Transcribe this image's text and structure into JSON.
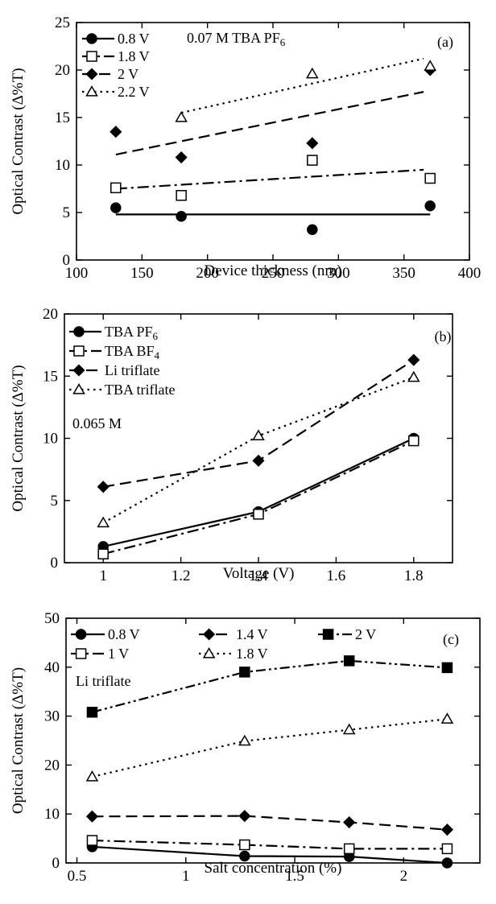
{
  "chart_data": [
    {
      "type": "scatter",
      "panel_label": "(a)",
      "annotation": "0.07 M TBA PF",
      "annotation_sub": "6",
      "xlabel": "Device thickness (nm)",
      "ylabel": "Optical Contrast (Δ%T)",
      "xlim": [
        100,
        400
      ],
      "ylim": [
        0,
        25
      ],
      "xticks": [
        100,
        150,
        200,
        250,
        300,
        350,
        400
      ],
      "yticks": [
        0,
        5,
        10,
        15,
        20,
        25
      ],
      "legend_position": "top-left",
      "series": [
        {
          "name": "0.8 V",
          "marker": "circle-filled",
          "line": "solid",
          "points": [
            [
              130,
              5.5
            ],
            [
              180,
              4.6
            ],
            [
              280,
              3.2
            ],
            [
              370,
              5.7
            ]
          ],
          "fit": [
            [
              130,
              4.8
            ],
            [
              370,
              4.8
            ]
          ]
        },
        {
          "name": "1.8 V",
          "marker": "square-open",
          "line": "dashdot",
          "points": [
            [
              130,
              7.6
            ],
            [
              180,
              6.8
            ],
            [
              280,
              10.5
            ],
            [
              370,
              8.6
            ]
          ],
          "fit": [
            [
              130,
              7.5
            ],
            [
              365,
              9.5
            ]
          ]
        },
        {
          "name": "2 V",
          "marker": "diamond-filled",
          "line": "dashed",
          "points": [
            [
              130,
              13.5
            ],
            [
              180,
              10.8
            ],
            [
              280,
              12.3
            ],
            [
              370,
              20.0
            ]
          ],
          "fit": [
            [
              130,
              11.1
            ],
            [
              365,
              17.7
            ]
          ]
        },
        {
          "name": "2.2 V",
          "marker": "triangle-open",
          "line": "dotted",
          "points": [
            [
              180,
              15.0
            ],
            [
              280,
              19.6
            ],
            [
              370,
              20.4
            ]
          ],
          "fit": [
            [
              180,
              15.5
            ],
            [
              365,
              21.2
            ]
          ]
        }
      ]
    },
    {
      "type": "line",
      "panel_label": "(b)",
      "annotation": "0.065 M",
      "xlabel": "Voltage (V)",
      "ylabel": "Optical Contrast (Δ%T)",
      "xlim": [
        0.9,
        1.9
      ],
      "ylim": [
        0,
        20
      ],
      "xticks": [
        1,
        1.2,
        1.4,
        1.6,
        1.8
      ],
      "yticks": [
        0,
        5,
        10,
        15,
        20
      ],
      "legend_position": "top-left",
      "series": [
        {
          "name": "TBA PF6",
          "label_main": "TBA PF",
          "label_sub": "6",
          "marker": "circle-filled",
          "line": "solid",
          "points": [
            [
              1,
              1.3
            ],
            [
              1.4,
              4.1
            ],
            [
              1.8,
              10.0
            ]
          ]
        },
        {
          "name": "TBA BF4",
          "label_main": "TBA BF",
          "label_sub": "4",
          "marker": "square-open",
          "line": "dashdot",
          "points": [
            [
              1,
              0.7
            ],
            [
              1.4,
              3.9
            ],
            [
              1.8,
              9.8
            ]
          ]
        },
        {
          "name": "Li triflate",
          "marker": "diamond-filled",
          "line": "dashed",
          "points": [
            [
              1,
              6.1
            ],
            [
              1.4,
              8.2
            ],
            [
              1.8,
              16.3
            ]
          ]
        },
        {
          "name": "TBA triflate",
          "marker": "triangle-open",
          "line": "dotted",
          "points": [
            [
              1,
              3.2
            ],
            [
              1.4,
              10.2
            ],
            [
              1.8,
              14.9
            ]
          ]
        }
      ]
    },
    {
      "type": "line",
      "panel_label": "(c)",
      "annotation": "Li triflate",
      "xlabel": "Salt concentration (%)",
      "ylabel": "Optical Contrast (Δ%T)",
      "xlim": [
        0.45,
        2.35
      ],
      "ylim": [
        0,
        50
      ],
      "xticks": [
        0.5,
        1,
        1.5,
        2
      ],
      "yticks": [
        0,
        10,
        20,
        30,
        40,
        50
      ],
      "legend_position": "top",
      "series": [
        {
          "name": "0.8 V",
          "marker": "circle-filled",
          "line": "solid",
          "points": [
            [
              0.57,
              3.3
            ],
            [
              1.27,
              1.4
            ],
            [
              1.75,
              1.3
            ],
            [
              2.2,
              0.0
            ]
          ]
        },
        {
          "name": "1 V",
          "marker": "square-open",
          "line": "dashdot",
          "points": [
            [
              0.57,
              4.6
            ],
            [
              1.27,
              3.7
            ],
            [
              1.75,
              2.9
            ],
            [
              2.2,
              2.9
            ]
          ]
        },
        {
          "name": "1.4 V",
          "marker": "diamond-filled",
          "line": "dashed",
          "points": [
            [
              0.57,
              9.5
            ],
            [
              1.27,
              9.6
            ],
            [
              1.75,
              8.3
            ],
            [
              2.2,
              6.8
            ]
          ]
        },
        {
          "name": "1.8 V",
          "marker": "triangle-open",
          "line": "dotted",
          "points": [
            [
              0.57,
              17.6
            ],
            [
              1.27,
              24.9
            ],
            [
              1.75,
              27.2
            ],
            [
              2.2,
              29.4
            ]
          ]
        },
        {
          "name": "2 V",
          "marker": "square-filled",
          "line": "dashdotdot",
          "points": [
            [
              0.57,
              30.8
            ],
            [
              1.27,
              39.0
            ],
            [
              1.75,
              41.3
            ],
            [
              2.2,
              39.9
            ]
          ]
        }
      ]
    }
  ]
}
